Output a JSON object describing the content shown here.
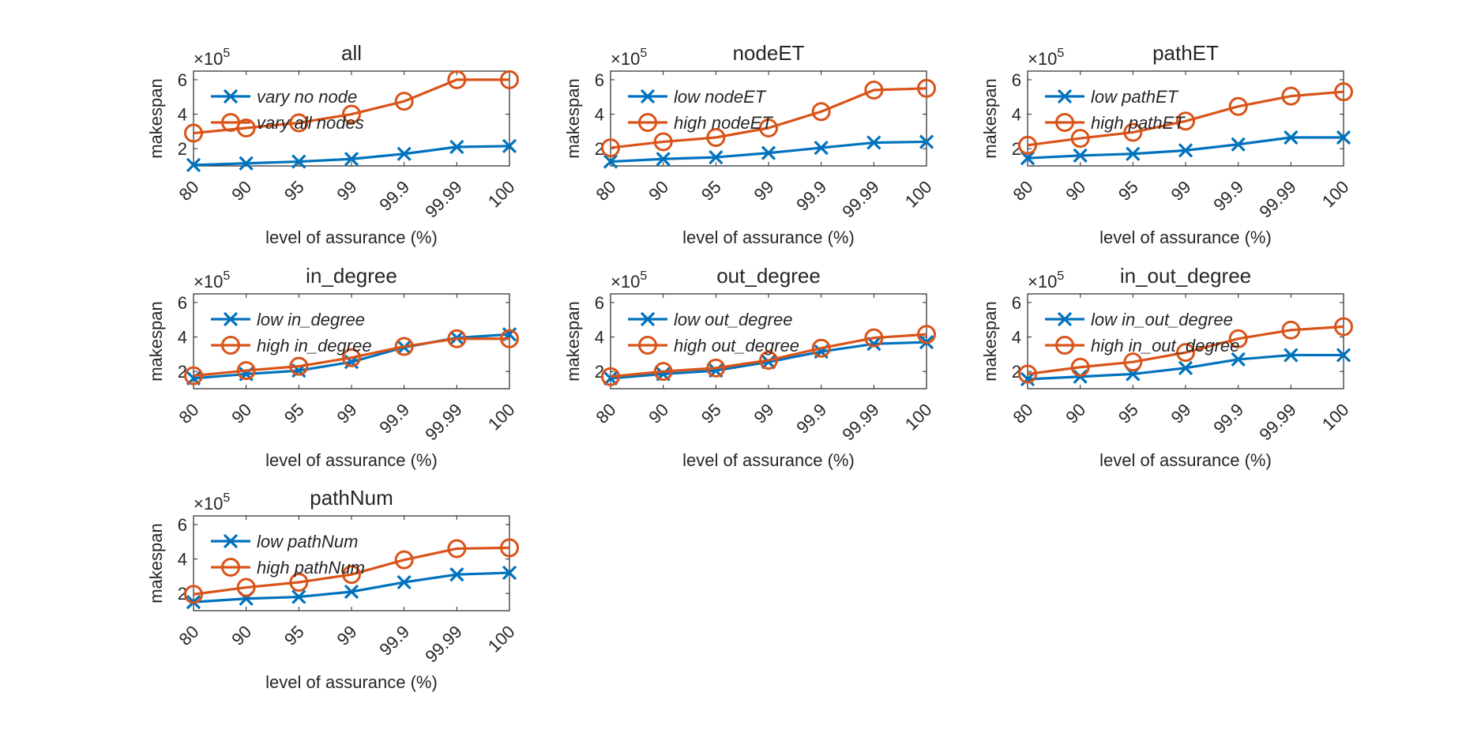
{
  "figure": {
    "x_categories": [
      "80",
      "90",
      "95",
      "99",
      "99.9",
      "99.99",
      "100"
    ],
    "xlabel": "level of assurance (%)",
    "ylabel": "makespan",
    "y_exponent": "×10",
    "y_exponent_power": "5",
    "y_ticks": [
      "2",
      "4",
      "6"
    ],
    "ylim": [
      1,
      6.5
    ],
    "colors": {
      "low": "#0072BD",
      "high": "#D95319"
    }
  },
  "chart_data": [
    {
      "type": "line",
      "title": "all",
      "categories": [
        "80",
        "90",
        "95",
        "99",
        "99.9",
        "99.99",
        "100"
      ],
      "xlabel": "level of assurance (%)",
      "ylabel": "makespan",
      "ylim": [
        1,
        6.5
      ],
      "legend_position": "top-left",
      "series": [
        {
          "name": "vary no node",
          "marker": "x",
          "values": [
            1.05,
            1.15,
            1.25,
            1.4,
            1.7,
            2.1,
            2.15
          ]
        },
        {
          "name": "vary all nodes",
          "marker": "o",
          "values": [
            2.9,
            3.2,
            3.5,
            4.0,
            4.75,
            6.0,
            6.0
          ]
        }
      ]
    },
    {
      "type": "line",
      "title": "nodeET",
      "categories": [
        "80",
        "90",
        "95",
        "99",
        "99.9",
        "99.99",
        "100"
      ],
      "xlabel": "level of assurance (%)",
      "ylabel": "makespan",
      "ylim": [
        1,
        6.5
      ],
      "legend_position": "top-left",
      "series": [
        {
          "name": "low nodeET",
          "marker": "x",
          "values": [
            1.25,
            1.4,
            1.5,
            1.75,
            2.05,
            2.35,
            2.4
          ]
        },
        {
          "name": "high nodeET",
          "marker": "o",
          "values": [
            2.05,
            2.4,
            2.65,
            3.2,
            4.15,
            5.4,
            5.5
          ]
        }
      ]
    },
    {
      "type": "line",
      "title": "pathET",
      "categories": [
        "80",
        "90",
        "95",
        "99",
        "99.9",
        "99.99",
        "100"
      ],
      "xlabel": "level of assurance (%)",
      "ylabel": "makespan",
      "ylim": [
        1,
        6.5
      ],
      "legend_position": "top-left",
      "series": [
        {
          "name": "low pathET",
          "marker": "x",
          "values": [
            1.45,
            1.6,
            1.7,
            1.9,
            2.25,
            2.65,
            2.65
          ]
        },
        {
          "name": "high pathET",
          "marker": "o",
          "values": [
            2.2,
            2.6,
            2.95,
            3.6,
            4.45,
            5.05,
            5.3
          ]
        }
      ]
    },
    {
      "type": "line",
      "title": "in_degree",
      "categories": [
        "80",
        "90",
        "95",
        "99",
        "99.9",
        "99.99",
        "100"
      ],
      "xlabel": "level of assurance (%)",
      "ylabel": "makespan",
      "ylim": [
        1,
        6.5
      ],
      "legend_position": "top-left",
      "series": [
        {
          "name": "low in_degree",
          "marker": "x",
          "values": [
            1.6,
            1.85,
            2.05,
            2.55,
            3.4,
            3.95,
            4.15
          ]
        },
        {
          "name": "high in_degree",
          "marker": "o",
          "values": [
            1.75,
            2.05,
            2.3,
            2.8,
            3.45,
            3.9,
            3.9
          ]
        }
      ]
    },
    {
      "type": "line",
      "title": "out_degree",
      "categories": [
        "80",
        "90",
        "95",
        "99",
        "99.9",
        "99.99",
        "100"
      ],
      "xlabel": "level of assurance (%)",
      "ylabel": "makespan",
      "ylim": [
        1,
        6.5
      ],
      "legend_position": "top-left",
      "series": [
        {
          "name": "low out_degree",
          "marker": "x",
          "values": [
            1.6,
            1.85,
            2.05,
            2.55,
            3.15,
            3.6,
            3.7
          ]
        },
        {
          "name": "high out_degree",
          "marker": "o",
          "values": [
            1.7,
            2.0,
            2.2,
            2.65,
            3.35,
            3.95,
            4.15
          ]
        }
      ]
    },
    {
      "type": "line",
      "title": "in_out_degree",
      "categories": [
        "80",
        "90",
        "95",
        "99",
        "99.9",
        "99.99",
        "100"
      ],
      "xlabel": "level of assurance (%)",
      "ylabel": "makespan",
      "ylim": [
        1,
        6.5
      ],
      "legend_position": "top-left",
      "series": [
        {
          "name": "low in_out_degree",
          "marker": "x",
          "values": [
            1.55,
            1.7,
            1.85,
            2.2,
            2.7,
            2.95,
            2.95
          ]
        },
        {
          "name": "high in_out_degree",
          "marker": "o",
          "values": [
            1.85,
            2.25,
            2.55,
            3.1,
            3.9,
            4.4,
            4.6
          ]
        }
      ]
    },
    {
      "type": "line",
      "title": "pathNum",
      "categories": [
        "80",
        "90",
        "95",
        "99",
        "99.9",
        "99.99",
        "100"
      ],
      "xlabel": "level of assurance (%)",
      "ylabel": "makespan",
      "ylim": [
        1,
        6.5
      ],
      "legend_position": "top-left",
      "series": [
        {
          "name": "low pathNum",
          "marker": "x",
          "values": [
            1.5,
            1.7,
            1.8,
            2.1,
            2.65,
            3.1,
            3.2
          ]
        },
        {
          "name": "high pathNum",
          "marker": "o",
          "values": [
            1.95,
            2.35,
            2.65,
            3.1,
            3.95,
            4.6,
            4.65
          ]
        }
      ]
    }
  ]
}
